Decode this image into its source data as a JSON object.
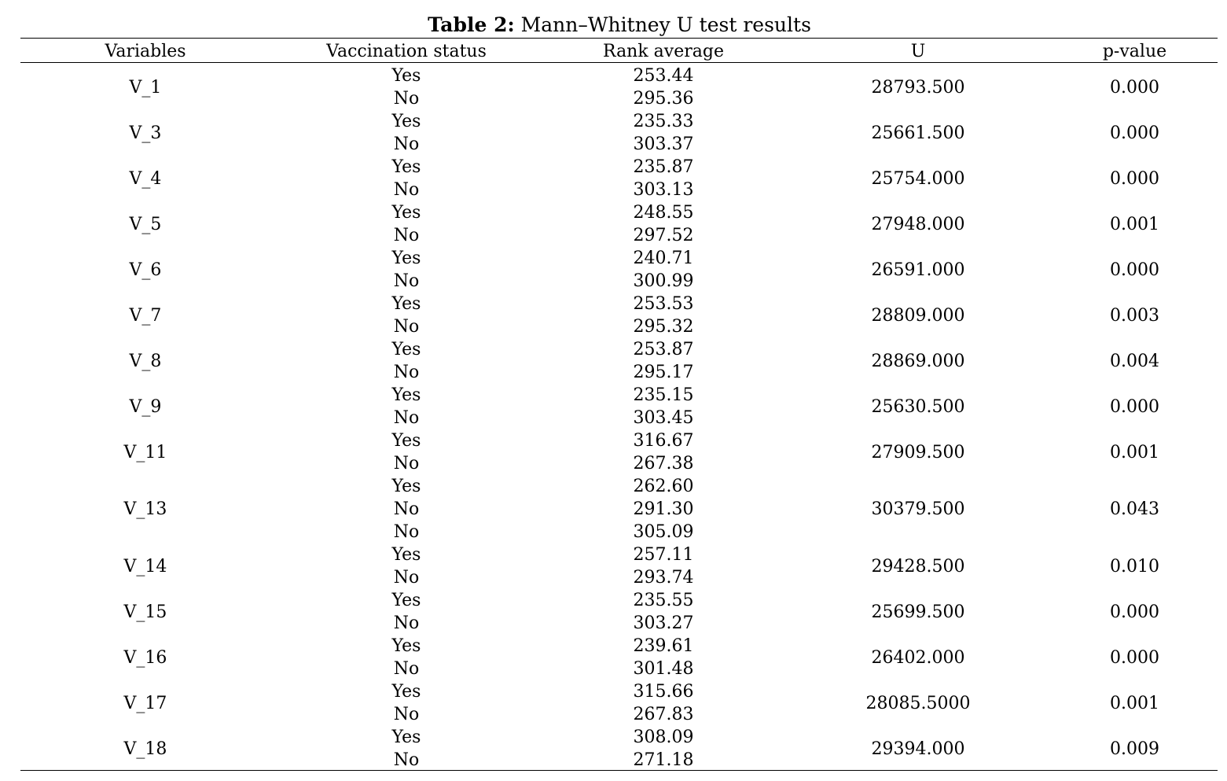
{
  "caption": {
    "label": "Table 2:",
    "text": "Mann–Whitney U test results"
  },
  "table": {
    "headers": {
      "variables": "Variables",
      "vaccination_status": "Vaccination status",
      "rank_average": "Rank average",
      "u": "U",
      "p_value": "p-value"
    },
    "rows": [
      {
        "variable": "V_1",
        "status": [
          "Yes",
          "No"
        ],
        "rank": [
          "253.44",
          "295.36"
        ],
        "u": "28793.500",
        "p": "0.000"
      },
      {
        "variable": "V_3",
        "status": [
          "Yes",
          "No"
        ],
        "rank": [
          "235.33",
          "303.37"
        ],
        "u": "25661.500",
        "p": "0.000"
      },
      {
        "variable": "V_4",
        "status": [
          "Yes",
          "No"
        ],
        "rank": [
          "235.87",
          "303.13"
        ],
        "u": "25754.000",
        "p": "0.000"
      },
      {
        "variable": "V_5",
        "status": [
          "Yes",
          "No"
        ],
        "rank": [
          "248.55",
          "297.52"
        ],
        "u": "27948.000",
        "p": "0.001"
      },
      {
        "variable": "V_6",
        "status": [
          "Yes",
          "No"
        ],
        "rank": [
          "240.71",
          "300.99"
        ],
        "u": "26591.000",
        "p": "0.000"
      },
      {
        "variable": "V_7",
        "status": [
          "Yes",
          "No"
        ],
        "rank": [
          "253.53",
          "295.32"
        ],
        "u": "28809.000",
        "p": "0.003"
      },
      {
        "variable": "V_8",
        "status": [
          "Yes",
          "No"
        ],
        "rank": [
          "253.87",
          "295.17"
        ],
        "u": "28869.000",
        "p": "0.004"
      },
      {
        "variable": "V_9",
        "status": [
          "Yes",
          "No"
        ],
        "rank": [
          "235.15",
          "303.45"
        ],
        "u": "25630.500",
        "p": "0.000"
      },
      {
        "variable": "V_11",
        "status": [
          "Yes",
          "No"
        ],
        "rank": [
          "316.67",
          "267.38"
        ],
        "u": "27909.500",
        "p": "0.001"
      },
      {
        "variable": "V_13",
        "status": [
          "Yes",
          "No",
          "No"
        ],
        "rank": [
          "262.60",
          "291.30",
          "305.09"
        ],
        "u": "30379.500",
        "p": "0.043"
      },
      {
        "variable": "V_14",
        "status": [
          "Yes",
          "No"
        ],
        "rank": [
          "257.11",
          "293.74"
        ],
        "u": "29428.500",
        "p": "0.010"
      },
      {
        "variable": "V_15",
        "status": [
          "Yes",
          "No"
        ],
        "rank": [
          "235.55",
          "303.27"
        ],
        "u": "25699.500",
        "p": "0.000"
      },
      {
        "variable": "V_16",
        "status": [
          "Yes",
          "No"
        ],
        "rank": [
          "239.61",
          "301.48"
        ],
        "u": "26402.000",
        "p": "0.000"
      },
      {
        "variable": "V_17",
        "status": [
          "Yes",
          "No"
        ],
        "rank": [
          "315.66",
          "267.83"
        ],
        "u": "28085.5000",
        "p": "0.001"
      },
      {
        "variable": "V_18",
        "status": [
          "Yes",
          "No"
        ],
        "rank": [
          "308.09",
          "271.18"
        ],
        "u": "29394.000",
        "p": "0.009"
      }
    ]
  }
}
